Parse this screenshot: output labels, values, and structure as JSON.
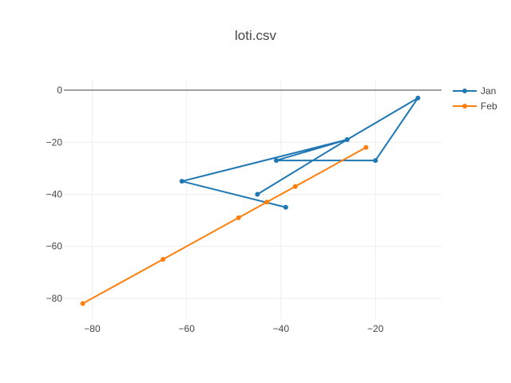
{
  "chart_data": {
    "type": "line",
    "title": "loti.csv",
    "xlabel": "",
    "ylabel": "",
    "xlim": [
      -86,
      -6
    ],
    "ylim": [
      -88,
      4
    ],
    "x_ticks": [
      -80,
      -60,
      -40,
      -20
    ],
    "y_ticks": [
      0,
      -20,
      -40,
      -60,
      -80
    ],
    "grid": true,
    "legend_position": "top-right",
    "series": [
      {
        "name": "Jan",
        "color": "#1f77b4",
        "x": [
          -39,
          -61,
          -26,
          -11,
          -20,
          -41,
          -26,
          -45
        ],
        "y": [
          -45,
          -35,
          -19,
          -3,
          -27,
          -27,
          -19,
          -40
        ]
      },
      {
        "name": "Feb",
        "color": "#ff7f0e",
        "x": [
          -82,
          -65,
          -49,
          -43,
          -37,
          -22
        ],
        "y": [
          -82,
          -65,
          -49,
          -43,
          -37,
          -22
        ]
      }
    ]
  }
}
